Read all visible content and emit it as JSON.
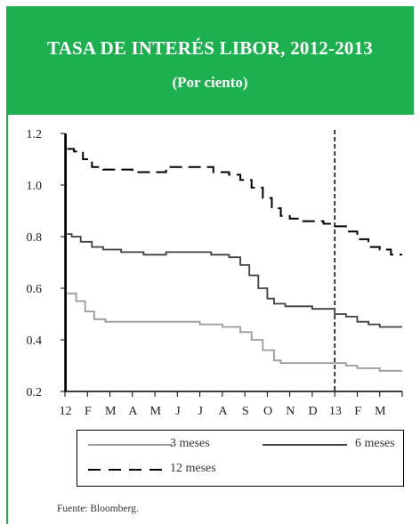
{
  "header": {
    "title": "TASA DE INTERÉS LIBOR, 2012-2013",
    "subtitle": "(Por ciento)"
  },
  "chart_data": {
    "type": "line",
    "title": "TASA DE INTERÉS LIBOR, 2012-2013",
    "subtitle": "(Por ciento)",
    "xlabel": "",
    "ylabel": "",
    "ylim": [
      0.2,
      1.2
    ],
    "yticks": [
      "0.2",
      "0.4",
      "0.6",
      "0.8",
      "1.0",
      "1.2"
    ],
    "xticks": [
      "12",
      "F",
      "M",
      "A",
      "M",
      "J",
      "J",
      "A",
      "S",
      "O",
      "N",
      "D",
      "13",
      "F",
      "M"
    ],
    "x_range_months": [
      0,
      15
    ],
    "vertical_marker_month": 12,
    "grid": false,
    "legend_position": "bottom",
    "series": [
      {
        "name": "3 meses",
        "color": "#9a9a9a",
        "dash": "solid",
        "points": [
          [
            0.1,
            0.58
          ],
          [
            0.3,
            0.58
          ],
          [
            0.5,
            0.55
          ],
          [
            0.9,
            0.51
          ],
          [
            1.3,
            0.48
          ],
          [
            1.8,
            0.47
          ],
          [
            2.5,
            0.47
          ],
          [
            3.5,
            0.47
          ],
          [
            4.5,
            0.47
          ],
          [
            5.5,
            0.47
          ],
          [
            6.0,
            0.46
          ],
          [
            7.0,
            0.45
          ],
          [
            7.8,
            0.43
          ],
          [
            8.3,
            0.4
          ],
          [
            8.8,
            0.36
          ],
          [
            9.3,
            0.32
          ],
          [
            9.6,
            0.31
          ],
          [
            10.5,
            0.31
          ],
          [
            11.5,
            0.31
          ],
          [
            12.0,
            0.31
          ],
          [
            12.5,
            0.3
          ],
          [
            13.0,
            0.29
          ],
          [
            13.5,
            0.29
          ],
          [
            14.0,
            0.28
          ],
          [
            14.5,
            0.28
          ],
          [
            15.0,
            0.28
          ]
        ]
      },
      {
        "name": "6 meses",
        "color": "#404040",
        "dash": "solid",
        "points": [
          [
            0.1,
            0.81
          ],
          [
            0.3,
            0.8
          ],
          [
            0.7,
            0.78
          ],
          [
            1.2,
            0.76
          ],
          [
            1.7,
            0.75
          ],
          [
            2.5,
            0.74
          ],
          [
            3.5,
            0.73
          ],
          [
            4.0,
            0.73
          ],
          [
            4.5,
            0.74
          ],
          [
            5.5,
            0.74
          ],
          [
            6.5,
            0.73
          ],
          [
            7.3,
            0.72
          ],
          [
            7.8,
            0.69
          ],
          [
            8.2,
            0.65
          ],
          [
            8.6,
            0.6
          ],
          [
            9.0,
            0.56
          ],
          [
            9.3,
            0.54
          ],
          [
            9.8,
            0.53
          ],
          [
            10.5,
            0.53
          ],
          [
            11.0,
            0.52
          ],
          [
            11.5,
            0.52
          ],
          [
            12.0,
            0.5
          ],
          [
            12.5,
            0.49
          ],
          [
            13.0,
            0.47
          ],
          [
            13.5,
            0.46
          ],
          [
            14.0,
            0.45
          ],
          [
            14.5,
            0.45
          ],
          [
            15.0,
            0.45
          ]
        ]
      },
      {
        "name": "12 meses",
        "color": "#000000",
        "dash": "dashed",
        "points": [
          [
            0.1,
            1.14
          ],
          [
            0.4,
            1.13
          ],
          [
            0.8,
            1.1
          ],
          [
            1.2,
            1.07
          ],
          [
            1.7,
            1.06
          ],
          [
            2.5,
            1.06
          ],
          [
            3.0,
            1.05
          ],
          [
            3.5,
            1.05
          ],
          [
            4.0,
            1.05
          ],
          [
            4.5,
            1.07
          ],
          [
            5.5,
            1.07
          ],
          [
            6.3,
            1.07
          ],
          [
            6.6,
            1.05
          ],
          [
            7.3,
            1.04
          ],
          [
            7.8,
            1.02
          ],
          [
            8.3,
            0.99
          ],
          [
            8.8,
            0.95
          ],
          [
            9.2,
            0.91
          ],
          [
            9.6,
            0.88
          ],
          [
            10.0,
            0.87
          ],
          [
            10.5,
            0.86
          ],
          [
            11.0,
            0.86
          ],
          [
            11.5,
            0.85
          ],
          [
            12.0,
            0.84
          ],
          [
            12.5,
            0.82
          ],
          [
            13.0,
            0.79
          ],
          [
            13.5,
            0.76
          ],
          [
            14.0,
            0.75
          ],
          [
            14.5,
            0.73
          ],
          [
            15.0,
            0.73
          ]
        ]
      }
    ]
  },
  "legend": {
    "entries": [
      "3 meses",
      "6 meses",
      "12 meses"
    ]
  },
  "footer": {
    "source": "Fuente:  Bloomberg."
  }
}
